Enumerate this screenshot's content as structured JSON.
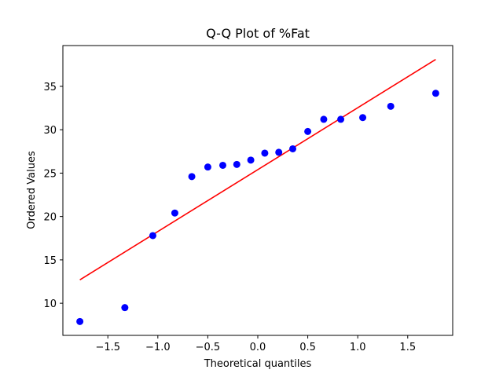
{
  "chart_data": {
    "type": "scatter",
    "title": "Q-Q Plot of %Fat",
    "xlabel": "Theoretical quantiles",
    "ylabel": "Ordered Values",
    "xlim": [
      -1.95,
      1.95
    ],
    "ylim": [
      6.3,
      39.7
    ],
    "x_ticks": [
      -1.5,
      -1.0,
      -0.5,
      0.0,
      0.5,
      1.0,
      1.5
    ],
    "x_tick_labels": [
      "−1.5",
      "−1.0",
      "−0.5",
      "0.0",
      "0.5",
      "1.0",
      "1.5"
    ],
    "y_ticks": [
      10,
      15,
      20,
      25,
      30,
      35
    ],
    "y_tick_labels": [
      "10",
      "15",
      "20",
      "25",
      "30",
      "35"
    ],
    "grid": false,
    "marker_color": "#0000ff",
    "line_color": "#ff0000",
    "points": [
      {
        "x": -1.78,
        "y": 7.9
      },
      {
        "x": -1.33,
        "y": 9.5
      },
      {
        "x": -1.05,
        "y": 17.8
      },
      {
        "x": -0.83,
        "y": 20.4
      },
      {
        "x": -0.66,
        "y": 24.6
      },
      {
        "x": -0.5,
        "y": 25.7
      },
      {
        "x": -0.35,
        "y": 25.9
      },
      {
        "x": -0.21,
        "y": 26.0
      },
      {
        "x": -0.07,
        "y": 26.5
      },
      {
        "x": 0.07,
        "y": 27.3
      },
      {
        "x": 0.21,
        "y": 27.4
      },
      {
        "x": 0.35,
        "y": 27.8
      },
      {
        "x": 0.5,
        "y": 29.8
      },
      {
        "x": 0.66,
        "y": 31.2
      },
      {
        "x": 0.83,
        "y": 31.2
      },
      {
        "x": 1.05,
        "y": 31.4
      },
      {
        "x": 1.33,
        "y": 32.7
      },
      {
        "x": 1.78,
        "y": 34.2
      }
    ],
    "fit_line": [
      {
        "x": -1.78,
        "y": 12.7
      },
      {
        "x": 1.78,
        "y": 38.1
      }
    ]
  }
}
